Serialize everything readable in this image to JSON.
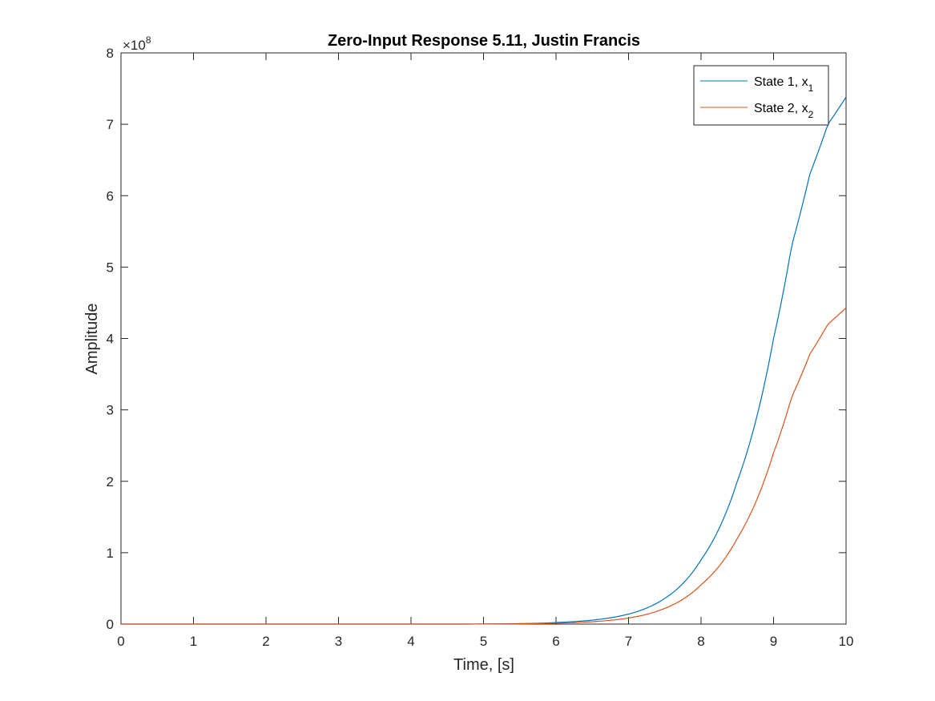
{
  "chart_data": {
    "type": "line",
    "title": "Zero-Input Response 5.11, Justin Francis",
    "xlabel": "Time, [s]",
    "ylabel": "Amplitude",
    "xlim": [
      0,
      10
    ],
    "ylim": [
      0,
      8
    ],
    "y_exponent_label": "×10",
    "y_exponent_power": "8",
    "x_ticks": [
      "0",
      "1",
      "2",
      "3",
      "4",
      "5",
      "6",
      "7",
      "8",
      "9",
      "10"
    ],
    "y_ticks": [
      "0",
      "1",
      "2",
      "3",
      "4",
      "5",
      "6",
      "7",
      "8"
    ],
    "grid": false,
    "legend_position": "top-right",
    "series": [
      {
        "name": "State 1, x",
        "name_subscript": "1",
        "color": "#0072BD",
        "x": [
          0,
          1,
          2,
          3,
          4,
          5,
          6,
          7,
          7.5,
          8,
          8.5,
          9,
          9.25,
          9.5,
          9.75,
          10
        ],
        "y": [
          0,
          0,
          0,
          0,
          0,
          0.002,
          0.022,
          0.14,
          0.36,
          0.9,
          2.0,
          4.0,
          5.3,
          6.3,
          7.0,
          7.38
        ]
      },
      {
        "name": "State 2, x",
        "name_subscript": "2",
        "color": "#D95319",
        "x": [
          0,
          1,
          2,
          3,
          4,
          5,
          6,
          7,
          7.5,
          8,
          8.5,
          9,
          9.25,
          9.5,
          9.75,
          10
        ],
        "y": [
          0,
          0,
          0,
          0,
          0,
          0.001,
          0.013,
          0.085,
          0.22,
          0.55,
          1.2,
          2.4,
          3.18,
          3.78,
          4.2,
          4.43
        ]
      }
    ]
  }
}
